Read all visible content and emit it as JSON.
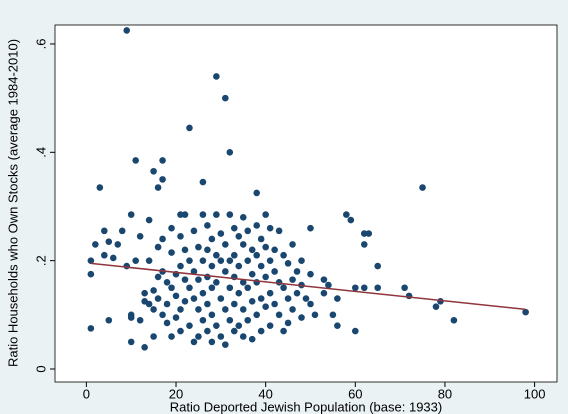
{
  "chart_data": {
    "type": "scatter",
    "x_label": "Ratio Deported Jewish Population (base: 1933)",
    "y_label": "Ratio Households who Own Stocks (average 1984-2010)",
    "xlim": [
      -7,
      105
    ],
    "ylim": [
      -0.024,
      0.635
    ],
    "xticks": [
      0,
      20,
      40,
      60,
      80,
      100
    ],
    "yticks": [
      0,
      {
        "value": 0.2,
        "label": ".2"
      },
      {
        "value": 0.4,
        "label": ".4"
      },
      {
        "value": 0.6,
        "label": ".6"
      }
    ],
    "background": "#eaf2f3",
    "series": [
      {
        "kind": "markers",
        "color": "#1a476f",
        "x": [
          1,
          1,
          1,
          2,
          3,
          4,
          4,
          5,
          5,
          6,
          7,
          8,
          9,
          9,
          10,
          10,
          10,
          10,
          11,
          11,
          12,
          12,
          13,
          13,
          13,
          14,
          14,
          14,
          15,
          15,
          15,
          15,
          16,
          16,
          16,
          16,
          17,
          17,
          17,
          17,
          17,
          18,
          18,
          18,
          19,
          19,
          19,
          19,
          20,
          20,
          20,
          21,
          21,
          21,
          21,
          21,
          22,
          22,
          22,
          22,
          23,
          23,
          23,
          23,
          24,
          24,
          24,
          24,
          25,
          25,
          25,
          25,
          26,
          26,
          26,
          26,
          26,
          27,
          27,
          27,
          27,
          27,
          28,
          28,
          28,
          28,
          28,
          29,
          29,
          29,
          29,
          29,
          30,
          30,
          30,
          30,
          31,
          31,
          31,
          31,
          31,
          32,
          32,
          32,
          32,
          32,
          33,
          33,
          33,
          33,
          33,
          34,
          34,
          34,
          34,
          35,
          35,
          35,
          35,
          35,
          36,
          36,
          36,
          36,
          37,
          37,
          37,
          37,
          38,
          38,
          38,
          38,
          38,
          39,
          39,
          39,
          39,
          40,
          40,
          40,
          40,
          41,
          41,
          41,
          41,
          42,
          42,
          42,
          43,
          43,
          43,
          44,
          44,
          44,
          45,
          45,
          45,
          46,
          46,
          46,
          47,
          47,
          48,
          48,
          48,
          49,
          50,
          50,
          50,
          51,
          53,
          53,
          54,
          55,
          56,
          56,
          58,
          59,
          60,
          60,
          62,
          62,
          62,
          63,
          65,
          65,
          71,
          72,
          75,
          78,
          79,
          82,
          98
        ],
        "values": [
          0.075,
          0.2,
          0.175,
          0.23,
          0.335,
          0.255,
          0.21,
          0.235,
          0.09,
          0.205,
          0.23,
          0.255,
          0.625,
          0.19,
          0.285,
          0.1,
          0.05,
          0.095,
          0.2,
          0.385,
          0.245,
          0.09,
          0.04,
          0.14,
          0.125,
          0.275,
          0.12,
          0.2,
          0.365,
          0.145,
          0.11,
          0.06,
          0.335,
          0.225,
          0.17,
          0.13,
          0.385,
          0.35,
          0.24,
          0.18,
          0.1,
          0.16,
          0.085,
          0.12,
          0.26,
          0.215,
          0.15,
          0.06,
          0.175,
          0.135,
          0.095,
          0.285,
          0.245,
          0.19,
          0.11,
          0.07,
          0.285,
          0.22,
          0.165,
          0.125,
          0.445,
          0.2,
          0.15,
          0.08,
          0.255,
          0.18,
          0.13,
          0.05,
          0.225,
          0.165,
          0.11,
          0.06,
          0.345,
          0.285,
          0.2,
          0.14,
          0.09,
          0.265,
          0.22,
          0.17,
          0.12,
          0.07,
          0.24,
          0.19,
          0.15,
          0.1,
          0.05,
          0.54,
          0.285,
          0.21,
          0.16,
          0.08,
          0.25,
          0.2,
          0.13,
          0.06,
          0.5,
          0.23,
          0.18,
          0.11,
          0.045,
          0.4,
          0.285,
          0.2,
          0.15,
          0.09,
          0.26,
          0.21,
          0.17,
          0.12,
          0.07,
          0.245,
          0.19,
          0.14,
          0.08,
          0.28,
          0.23,
          0.16,
          0.11,
          0.06,
          0.255,
          0.2,
          0.15,
          0.09,
          0.22,
          0.175,
          0.125,
          0.055,
          0.325,
          0.265,
          0.21,
          0.16,
          0.1,
          0.24,
          0.19,
          0.13,
          0.07,
          0.285,
          0.225,
          0.17,
          0.115,
          0.26,
          0.2,
          0.14,
          0.08,
          0.22,
          0.18,
          0.12,
          0.255,
          0.16,
          0.1,
          0.21,
          0.15,
          0.07,
          0.195,
          0.13,
          0.085,
          0.23,
          0.165,
          0.11,
          0.18,
          0.14,
          0.2,
          0.155,
          0.095,
          0.13,
          0.26,
          0.175,
          0.12,
          0.1,
          0.165,
          0.14,
          0.155,
          0.1,
          0.08,
          0.13,
          0.285,
          0.275,
          0.15,
          0.07,
          0.25,
          0.23,
          0.15,
          0.25,
          0.19,
          0.15,
          0.15,
          0.135,
          0.335,
          0.115,
          0.125,
          0.09,
          0.105
        ]
      },
      {
        "kind": "line",
        "color": "#90353b",
        "x": [
          1,
          98
        ],
        "values": [
          0.195,
          0.11
        ]
      }
    ]
  }
}
